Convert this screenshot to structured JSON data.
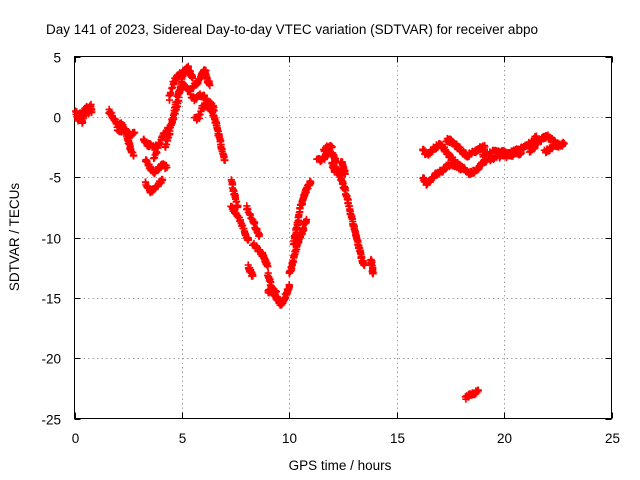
{
  "chart_data": {
    "type": "scatter",
    "title": "Day 141 of 2023, Sidereal Day-to-day VTEC variation (SDTVAR) for receiver abpo",
    "xlabel": "GPS time / hours",
    "ylabel": "SDTVAR / TECUs",
    "xlim": [
      0,
      25
    ],
    "ylim": [
      -25,
      5
    ],
    "xticks": [
      0,
      5,
      10,
      15,
      20,
      25
    ],
    "yticks": [
      5,
      0,
      -5,
      -10,
      -15,
      -20,
      -25
    ],
    "xtick_labels": [
      "0",
      "5",
      "10",
      "15",
      "20",
      "25"
    ],
    "ytick_labels": [
      "5",
      "0",
      "-5",
      "-10",
      "-15",
      "-20",
      "-25"
    ],
    "grid": true,
    "marker": "plus",
    "color": "#ff0000",
    "series": [
      {
        "name": "SDTVAR",
        "segments": [
          [
            [
              0.05,
              0.5
            ],
            [
              0.15,
              -0.2
            ],
            [
              0.25,
              0.4
            ],
            [
              0.35,
              -0.5
            ],
            [
              0.45,
              0.2
            ]
          ],
          [
            [
              0.45,
              0.5
            ],
            [
              0.55,
              0.8
            ],
            [
              0.65,
              0.3
            ],
            [
              0.75,
              0.9
            ],
            [
              0.8,
              0.4
            ]
          ],
          [
            [
              1.6,
              0.5
            ],
            [
              1.8,
              0.0
            ],
            [
              2.0,
              -0.8
            ],
            [
              2.2,
              -0.6
            ],
            [
              2.4,
              -1.2
            ],
            [
              2.5,
              -2.0
            ],
            [
              2.6,
              -2.6
            ],
            [
              2.75,
              -3.2
            ]
          ],
          [
            [
              2.0,
              -1.2
            ],
            [
              2.3,
              -1.1
            ],
            [
              2.6,
              -1.5
            ],
            [
              2.8,
              -1.3
            ]
          ],
          [
            [
              3.2,
              -1.9
            ],
            [
              3.4,
              -2.3
            ],
            [
              3.6,
              -2.4
            ],
            [
              3.8,
              -2.5
            ]
          ],
          [
            [
              3.3,
              -3.5
            ],
            [
              3.5,
              -4.2
            ],
            [
              3.7,
              -4.6
            ],
            [
              3.9,
              -4.3
            ],
            [
              4.1,
              -4.0
            ],
            [
              4.3,
              -4.2
            ]
          ],
          [
            [
              3.3,
              -5.5
            ],
            [
              3.5,
              -6.2
            ],
            [
              3.7,
              -6.0
            ],
            [
              3.9,
              -5.6
            ],
            [
              4.1,
              -5.2
            ]
          ],
          [
            [
              3.7,
              -3.5
            ],
            [
              3.9,
              -2.5
            ],
            [
              4.1,
              -1.6
            ],
            [
              4.3,
              -1.2
            ],
            [
              4.5,
              -0.6
            ],
            [
              4.7,
              0.5
            ],
            [
              4.9,
              2.0
            ],
            [
              5.0,
              3.2
            ],
            [
              5.1,
              3.8
            ],
            [
              5.2,
              4.0
            ],
            [
              5.3,
              3.9
            ],
            [
              5.4,
              3.6
            ],
            [
              5.5,
              3.2
            ]
          ],
          [
            [
              4.2,
              -2.5
            ],
            [
              4.4,
              -1.5
            ],
            [
              4.6,
              0.0
            ],
            [
              4.8,
              1.8
            ],
            [
              5.0,
              2.6
            ],
            [
              5.2,
              2.4
            ],
            [
              5.4,
              2.1
            ]
          ],
          [
            [
              4.4,
              1.5
            ],
            [
              4.6,
              2.8
            ],
            [
              4.8,
              3.4
            ],
            [
              5.0,
              3.6
            ],
            [
              5.3,
              4.2
            ]
          ],
          [
            [
              5.5,
              2.5
            ],
            [
              5.7,
              2.8
            ],
            [
              5.9,
              3.3
            ],
            [
              6.0,
              3.8
            ],
            [
              6.1,
              3.7
            ],
            [
              6.2,
              3.0
            ],
            [
              6.3,
              2.6
            ]
          ],
          [
            [
              5.4,
              1.8
            ],
            [
              5.6,
              1.4
            ],
            [
              5.8,
              1.9
            ],
            [
              6.0,
              1.7
            ],
            [
              6.2,
              1.3
            ],
            [
              6.4,
              1.0
            ],
            [
              6.5,
              0.5
            ]
          ],
          [
            [
              5.6,
              -0.2
            ],
            [
              5.8,
              0.0
            ],
            [
              6.0,
              1.0
            ],
            [
              6.2,
              0.8
            ],
            [
              6.4,
              0.5
            ],
            [
              6.5,
              0.0
            ],
            [
              6.6,
              -0.6
            ],
            [
              6.7,
              -1.4
            ],
            [
              6.8,
              -2.2
            ],
            [
              6.9,
              -3.0
            ],
            [
              7.0,
              -3.6
            ]
          ],
          [
            [
              7.3,
              -5.2
            ],
            [
              7.4,
              -6.2
            ],
            [
              7.5,
              -6.8
            ],
            [
              7.6,
              -7.5
            ]
          ],
          [
            [
              7.3,
              -7.4
            ],
            [
              7.5,
              -8.0
            ],
            [
              7.7,
              -8.6
            ],
            [
              7.9,
              -9.4
            ],
            [
              8.0,
              -10.0
            ],
            [
              8.1,
              -10.2
            ]
          ],
          [
            [
              8.0,
              -7.5
            ],
            [
              8.2,
              -8.2
            ],
            [
              8.4,
              -9.0
            ],
            [
              8.5,
              -9.5
            ],
            [
              8.6,
              -9.9
            ]
          ],
          [
            [
              8.3,
              -10.5
            ],
            [
              8.5,
              -10.9
            ],
            [
              8.7,
              -11.3
            ],
            [
              8.8,
              -11.6
            ],
            [
              8.9,
              -12.0
            ],
            [
              9.0,
              -12.4
            ]
          ],
          [
            [
              8.1,
              -12.4
            ],
            [
              8.2,
              -12.8
            ],
            [
              8.3,
              -13.2
            ]
          ],
          [
            [
              9.0,
              -13.0
            ],
            [
              9.1,
              -13.6
            ],
            [
              9.2,
              -14.3
            ],
            [
              9.3,
              -14.8
            ],
            [
              9.4,
              -15.0
            ],
            [
              9.5,
              -15.2
            ],
            [
              9.6,
              -15.5
            ],
            [
              9.7,
              -15.4
            ],
            [
              9.8,
              -15.0
            ],
            [
              9.9,
              -14.5
            ],
            [
              10.0,
              -14.0
            ]
          ],
          [
            [
              9.0,
              -14.5
            ],
            [
              9.2,
              -14.3
            ],
            [
              9.4,
              -14.5
            ]
          ],
          [
            [
              10.0,
              -13.0
            ],
            [
              10.1,
              -12.5
            ],
            [
              10.2,
              -11.8
            ],
            [
              10.3,
              -11.0
            ],
            [
              10.4,
              -10.4
            ],
            [
              10.5,
              -9.9
            ],
            [
              10.6,
              -9.5
            ],
            [
              10.7,
              -9.0
            ],
            [
              10.8,
              -8.5
            ]
          ],
          [
            [
              10.2,
              -10.5
            ],
            [
              10.3,
              -9.6
            ],
            [
              10.4,
              -8.6
            ],
            [
              10.5,
              -7.6
            ],
            [
              10.6,
              -7.0
            ],
            [
              10.7,
              -6.5
            ],
            [
              10.8,
              -6.0
            ],
            [
              10.9,
              -5.6
            ],
            [
              11.0,
              -5.4
            ]
          ],
          [
            [
              11.3,
              -3.4
            ],
            [
              11.5,
              -3.6
            ],
            [
              11.7,
              -3.2
            ],
            [
              11.9,
              -2.9
            ],
            [
              12.1,
              -3.3
            ],
            [
              12.2,
              -3.8
            ]
          ],
          [
            [
              11.6,
              -2.8
            ],
            [
              11.8,
              -2.4
            ],
            [
              12.0,
              -2.5
            ]
          ],
          [
            [
              12.0,
              -3.8
            ],
            [
              12.1,
              -4.5
            ],
            [
              12.2,
              -4.3
            ],
            [
              12.3,
              -4.6
            ],
            [
              12.4,
              -5.0
            ],
            [
              12.5,
              -5.5
            ],
            [
              12.6,
              -6.2
            ],
            [
              12.7,
              -6.8
            ],
            [
              12.8,
              -7.6
            ],
            [
              12.9,
              -8.3
            ],
            [
              13.0,
              -9.1
            ],
            [
              13.1,
              -9.8
            ],
            [
              13.2,
              -10.5
            ],
            [
              13.3,
              -11.2
            ],
            [
              13.4,
              -11.9
            ],
            [
              13.5,
              -12.3
            ]
          ],
          [
            [
              12.4,
              -3.6
            ],
            [
              12.5,
              -4.1
            ],
            [
              12.6,
              -4.7
            ]
          ],
          [
            [
              13.8,
              -11.8
            ],
            [
              13.85,
              -12.4
            ],
            [
              13.9,
              -13.0
            ]
          ],
          [
            [
              16.2,
              -2.7
            ],
            [
              16.4,
              -3.1
            ],
            [
              16.6,
              -2.9
            ],
            [
              16.8,
              -2.5
            ],
            [
              17.0,
              -2.3
            ],
            [
              17.2,
              -2.6
            ],
            [
              17.4,
              -3.1
            ],
            [
              17.6,
              -3.5
            ],
            [
              17.8,
              -3.9
            ],
            [
              18.0,
              -4.2
            ],
            [
              18.2,
              -4.4
            ],
            [
              18.4,
              -4.7
            ],
            [
              18.6,
              -4.5
            ],
            [
              18.8,
              -4.2
            ],
            [
              19.0,
              -3.8
            ],
            [
              19.2,
              -3.6
            ]
          ],
          [
            [
              16.2,
              -5.0
            ],
            [
              16.4,
              -5.6
            ],
            [
              16.6,
              -5.2
            ],
            [
              16.8,
              -4.8
            ],
            [
              17.0,
              -4.6
            ],
            [
              17.2,
              -4.3
            ],
            [
              17.4,
              -4.0
            ],
            [
              17.6,
              -3.9
            ],
            [
              17.8,
              -4.1
            ],
            [
              18.0,
              -4.3
            ]
          ],
          [
            [
              17.3,
              -1.9
            ],
            [
              17.5,
              -2.0
            ],
            [
              17.7,
              -2.3
            ],
            [
              17.9,
              -2.6
            ],
            [
              18.1,
              -3.0
            ],
            [
              18.3,
              -3.2
            ],
            [
              18.5,
              -3.0
            ],
            [
              18.7,
              -2.8
            ],
            [
              18.9,
              -2.6
            ],
            [
              19.1,
              -2.5
            ]
          ],
          [
            [
              19.0,
              -3.2
            ],
            [
              19.3,
              -3.0
            ],
            [
              19.6,
              -2.8
            ],
            [
              19.9,
              -2.9
            ],
            [
              20.2,
              -3.1
            ],
            [
              20.5,
              -2.8
            ],
            [
              20.8,
              -2.6
            ],
            [
              21.0,
              -2.5
            ],
            [
              21.2,
              -2.2
            ],
            [
              21.4,
              -1.9
            ],
            [
              21.5,
              -1.6
            ]
          ],
          [
            [
              19.3,
              -3.6
            ],
            [
              19.6,
              -3.4
            ],
            [
              19.9,
              -3.2
            ],
            [
              20.2,
              -3.3
            ],
            [
              20.5,
              -3.1
            ],
            [
              20.8,
              -3.0
            ]
          ],
          [
            [
              21.2,
              -2.8
            ],
            [
              21.4,
              -2.5
            ],
            [
              21.6,
              -2.0
            ],
            [
              21.8,
              -1.8
            ],
            [
              22.0,
              -1.6
            ],
            [
              22.2,
              -1.9
            ],
            [
              22.4,
              -2.2
            ],
            [
              22.6,
              -2.4
            ],
            [
              22.8,
              -2.2
            ]
          ],
          [
            [
              21.9,
              -2.9
            ],
            [
              22.1,
              -2.7
            ],
            [
              22.3,
              -2.5
            ],
            [
              22.5,
              -2.3
            ]
          ],
          [
            [
              18.2,
              -23.3
            ],
            [
              18.4,
              -23.1
            ],
            [
              18.6,
              -22.9
            ],
            [
              18.8,
              -22.7
            ]
          ]
        ]
      }
    ]
  }
}
